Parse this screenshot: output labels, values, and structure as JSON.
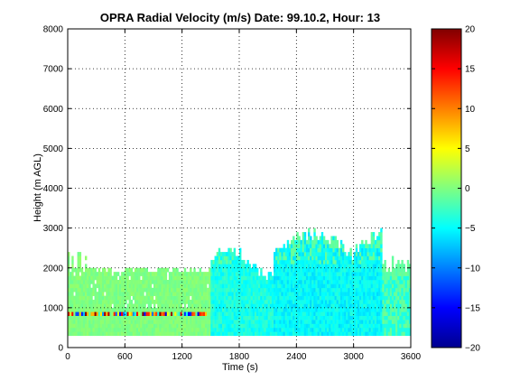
{
  "chart_data": {
    "type": "heatmap",
    "title": "OPRA Radial Velocity (m/s)  Date: 99.10.2, Hour: 13",
    "xlabel": "Time (s)",
    "ylabel": "Height (m AGL)",
    "xlim": [
      0,
      3600
    ],
    "ylim": [
      0,
      8000
    ],
    "xticks": [
      0,
      600,
      1200,
      1800,
      2400,
      3000,
      3600
    ],
    "xtick_labels": [
      "0",
      "600",
      "1200",
      "1800",
      "2400",
      "3000",
      "3600"
    ],
    "yticks": [
      0,
      1000,
      2000,
      3000,
      4000,
      5000,
      6000,
      7000,
      8000
    ],
    "ytick_labels": [
      "0",
      "1000",
      "2000",
      "3000",
      "4000",
      "5000",
      "6000",
      "7000",
      "8000"
    ],
    "grid": true,
    "colorbar": {
      "range": [
        -20,
        20
      ],
      "ticks": [
        -20,
        -15,
        -10,
        -5,
        0,
        5,
        10,
        15,
        20
      ],
      "tick_labels": [
        "−20",
        "−15",
        "−10",
        "−5",
        "0",
        "5",
        "10",
        "15",
        "20"
      ],
      "colormap": "jet"
    },
    "data_regions": [
      {
        "t_start": 0,
        "t_end": 1500,
        "h_bottom": 300,
        "h_top": 2000,
        "value": 0
      },
      {
        "t_start": 0,
        "t_end": 1450,
        "h_bottom": 780,
        "h_top": 880,
        "value": "mixed -15..18"
      },
      {
        "t_start": 1500,
        "t_end": 2150,
        "h_bottom": 300,
        "h_top": 2300,
        "value": -4
      },
      {
        "t_start": 2150,
        "t_end": 3300,
        "h_bottom": 300,
        "h_top": 3000,
        "value": -5
      },
      {
        "t_start": 3300,
        "t_end": 3600,
        "h_bottom": 300,
        "h_top": 2400,
        "value": -1
      }
    ]
  }
}
